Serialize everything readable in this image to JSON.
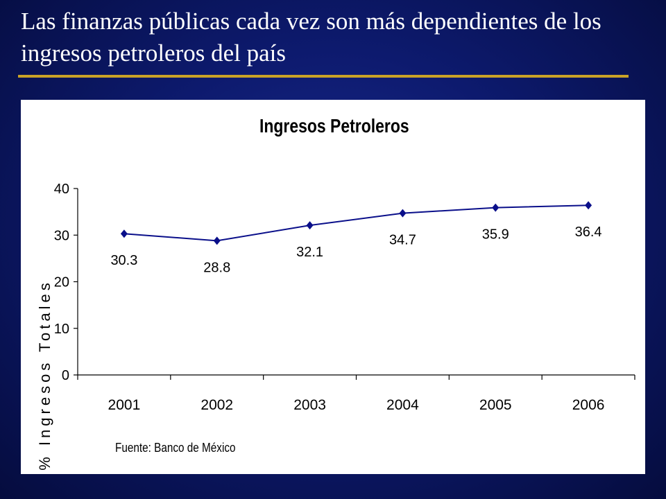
{
  "slide": {
    "title": "Las finanzas públicas cada vez son más dependientes de los ingresos petroleros del país"
  },
  "colors": {
    "background": "#0d1a6e",
    "rule": "#c9a227",
    "series": "#0a0f8a"
  },
  "chart_data": {
    "type": "line",
    "title": "Ingresos Petroleros",
    "ylabel": "% Ingresos Totales",
    "xlabel": "",
    "categories": [
      "2001",
      "2002",
      "2003",
      "2004",
      "2005",
      "2006"
    ],
    "series": [
      {
        "values": [
          30.3,
          28.8,
          32.1,
          34.7,
          35.9,
          36.4
        ],
        "labels": [
          "30.3",
          "28.8",
          "32.1",
          "34.7",
          "35.9",
          "36.4"
        ]
      }
    ],
    "ylim": [
      0,
      40
    ],
    "yticks": [
      "0",
      "10",
      "20",
      "30",
      "40"
    ],
    "grid": false,
    "legend": "none",
    "marker": "diamond",
    "source": "Fuente: Banco de México"
  }
}
